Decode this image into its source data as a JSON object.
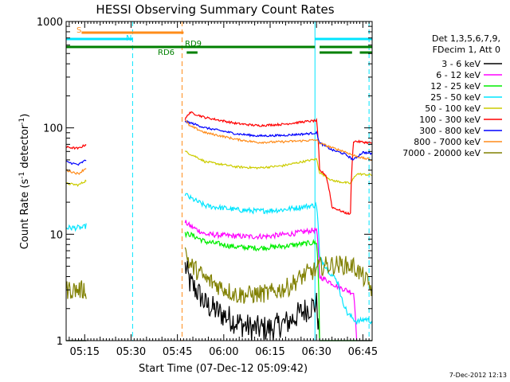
{
  "chart_data": {
    "type": "line",
    "title": "HESSI Observing Summary Count Rates",
    "xlabel": "Start Time (07-Dec-12 05:09:42)",
    "ylabel_main": "Count Rate (s",
    "ylabel_sup1": "-1",
    "ylabel_mid": " detector",
    "ylabel_sup2": "-1",
    "ylabel_end": ")",
    "footer": "7-Dec-2012 12:13",
    "y_scale": "log",
    "ylim": [
      1,
      1000
    ],
    "xlim_minutes_after_0509": [
      0,
      99
    ],
    "xtick_labels": [
      "05:15",
      "05:30",
      "05:45",
      "06:00",
      "06:15",
      "06:30",
      "06:45"
    ],
    "xtick_minutes": [
      6,
      21,
      36,
      51,
      66,
      81,
      96
    ],
    "ytick_labels": [
      "1",
      "10",
      "100",
      "1000"
    ],
    "ytick_values": [
      1,
      10,
      100,
      1000
    ],
    "legend_header": [
      "Det 1,3,5,6,7,9,",
      "FDecim 1, Att 0"
    ],
    "legend_placement": "right-outside",
    "flags": [
      {
        "label": "S",
        "color": "#ff8c1a",
        "row": "top"
      },
      {
        "label": "N",
        "color": "#00e5ff",
        "row": "middle"
      },
      {
        "label": "RD9",
        "color": "#008000",
        "row": "lower"
      },
      {
        "label": "RD6",
        "color": "#008000",
        "row": "bottom"
      }
    ],
    "vertical_markers": [
      {
        "minute": 21.5,
        "color": "#00e5ff",
        "style": "dashed"
      },
      {
        "minute": 37.5,
        "color": "#ff8c1a",
        "style": "dashed"
      },
      {
        "minute": 80.5,
        "color": "#00e5ff",
        "style": "solid"
      },
      {
        "minute": 98,
        "color": "#00e5ff",
        "style": "dashed"
      }
    ],
    "segments_minutes": [
      [
        0,
        6.5
      ],
      [
        38.5,
        99
      ]
    ],
    "series": [
      {
        "name": "3 - 6 keV",
        "color": "#000000",
        "seg1": [
          [
            0,
            1
          ],
          [
            6.5,
            1
          ]
        ],
        "seg2": [
          [
            38.5,
            5
          ],
          [
            40,
            3.5
          ],
          [
            42,
            3
          ],
          [
            45,
            2.2
          ],
          [
            50,
            1.8
          ],
          [
            55,
            1.5
          ],
          [
            60,
            1.3
          ],
          [
            66,
            1.3
          ],
          [
            72,
            1.5
          ],
          [
            78,
            2
          ],
          [
            81,
            2.2
          ],
          [
            82,
            1
          ],
          [
            99,
            1
          ]
        ]
      },
      {
        "name": "6 - 12 keV",
        "color": "#ff00ff",
        "seg1": [
          [
            0,
            1
          ],
          [
            6.5,
            1
          ]
        ],
        "seg2": [
          [
            38.5,
            13
          ],
          [
            40,
            12
          ],
          [
            45,
            10
          ],
          [
            55,
            9.6
          ],
          [
            60,
            9.5
          ],
          [
            66,
            9.6
          ],
          [
            74,
            10.2
          ],
          [
            79,
            10.8
          ],
          [
            81,
            11
          ],
          [
            82,
            4
          ],
          [
            88,
            3.2
          ],
          [
            93,
            2.8
          ],
          [
            94,
            1
          ],
          [
            99,
            1
          ]
        ]
      },
      {
        "name": "12 - 25 keV",
        "color": "#00ee00",
        "seg1": [
          [
            0,
            1
          ],
          [
            6.5,
            1
          ]
        ],
        "seg2": [
          [
            38.5,
            10
          ],
          [
            40,
            10
          ],
          [
            45,
            8.5
          ],
          [
            55,
            7.6
          ],
          [
            62,
            7.4
          ],
          [
            70,
            7.7
          ],
          [
            78,
            8.2
          ],
          [
            81,
            8.4
          ],
          [
            82,
            1
          ],
          [
            99,
            1
          ]
        ]
      },
      {
        "name": "25 - 50 keV",
        "color": "#00e5ff",
        "seg1": [
          [
            0,
            11.5
          ],
          [
            5.5,
            11.5
          ],
          [
            6.5,
            12
          ]
        ],
        "seg2": [
          [
            38.5,
            24
          ],
          [
            40,
            22
          ],
          [
            45,
            18.5
          ],
          [
            55,
            17
          ],
          [
            62,
            16.5
          ],
          [
            70,
            17
          ],
          [
            78,
            18.3
          ],
          [
            81,
            18.8
          ],
          [
            82,
            6
          ],
          [
            85,
            4.5
          ],
          [
            88,
            3.5
          ],
          [
            89,
            2.5
          ],
          [
            91,
            1.8
          ],
          [
            94,
            1.5
          ],
          [
            97,
            1.6
          ],
          [
            99,
            1.5
          ]
        ]
      },
      {
        "name": "50 - 100 keV",
        "color": "#cccc00",
        "seg1": [
          [
            0,
            30
          ],
          [
            4,
            29
          ],
          [
            6.5,
            32
          ]
        ],
        "seg2": [
          [
            38.5,
            60
          ],
          [
            40,
            57
          ],
          [
            45,
            48
          ],
          [
            55,
            43
          ],
          [
            62,
            42
          ],
          [
            70,
            44
          ],
          [
            78,
            49
          ],
          [
            81,
            51
          ],
          [
            82,
            38
          ],
          [
            86,
            32
          ],
          [
            89,
            31
          ],
          [
            92,
            30
          ],
          [
            94,
            37
          ],
          [
            99,
            36
          ]
        ]
      },
      {
        "name": "100 - 300 keV",
        "color": "#ff0000",
        "seg1": [
          [
            0,
            66
          ],
          [
            4,
            64
          ],
          [
            6.5,
            70
          ]
        ],
        "seg2": [
          [
            38.5,
            120
          ],
          [
            40,
            140
          ],
          [
            45,
            125
          ],
          [
            55,
            110
          ],
          [
            62,
            105
          ],
          [
            70,
            108
          ],
          [
            78,
            115
          ],
          [
            81,
            117
          ],
          [
            82,
            40
          ],
          [
            84,
            36
          ],
          [
            86,
            18
          ],
          [
            88,
            17
          ],
          [
            90,
            16
          ],
          [
            92,
            15.5
          ],
          [
            93,
            75
          ],
          [
            99,
            72
          ]
        ]
      },
      {
        "name": "300 - 800 keV",
        "color": "#0000ff",
        "seg1": [
          [
            0,
            48
          ],
          [
            4,
            45
          ],
          [
            6.5,
            50
          ]
        ],
        "seg2": [
          [
            38.5,
            115
          ],
          [
            40,
            112
          ],
          [
            45,
            100
          ],
          [
            55,
            88
          ],
          [
            62,
            84
          ],
          [
            70,
            85
          ],
          [
            78,
            88
          ],
          [
            81,
            90
          ],
          [
            82,
            72
          ],
          [
            86,
            62
          ],
          [
            90,
            57
          ],
          [
            93,
            50
          ],
          [
            96,
            59
          ],
          [
            99,
            57
          ]
        ]
      },
      {
        "name": "800 - 7000 keV",
        "color": "#ff8c1a",
        "seg1": [
          [
            0,
            40
          ],
          [
            4,
            37
          ],
          [
            6.5,
            42
          ]
        ],
        "seg2": [
          [
            38.5,
            118
          ],
          [
            40,
            104
          ],
          [
            45,
            90
          ],
          [
            55,
            78
          ],
          [
            62,
            73
          ],
          [
            70,
            74
          ],
          [
            78,
            76
          ],
          [
            81,
            77
          ],
          [
            82,
            72
          ],
          [
            86,
            65
          ],
          [
            90,
            60
          ],
          [
            93,
            55
          ],
          [
            96,
            52
          ],
          [
            99,
            50
          ]
        ]
      },
      {
        "name": "7000 - 20000 keV",
        "color": "#808000",
        "seg1": [
          [
            0,
            3
          ],
          [
            6.5,
            3
          ]
        ],
        "seg2": [
          [
            38.5,
            7
          ],
          [
            40,
            5.2
          ],
          [
            45,
            3.8
          ],
          [
            50,
            3.2
          ],
          [
            55,
            2.7
          ],
          [
            60,
            2.7
          ],
          [
            66,
            2.8
          ],
          [
            72,
            3.2
          ],
          [
            78,
            4.3
          ],
          [
            81,
            4.6
          ],
          [
            82,
            5
          ],
          [
            88,
            5.2
          ],
          [
            93,
            5
          ],
          [
            96,
            4
          ],
          [
            99,
            3
          ]
        ]
      }
    ]
  }
}
